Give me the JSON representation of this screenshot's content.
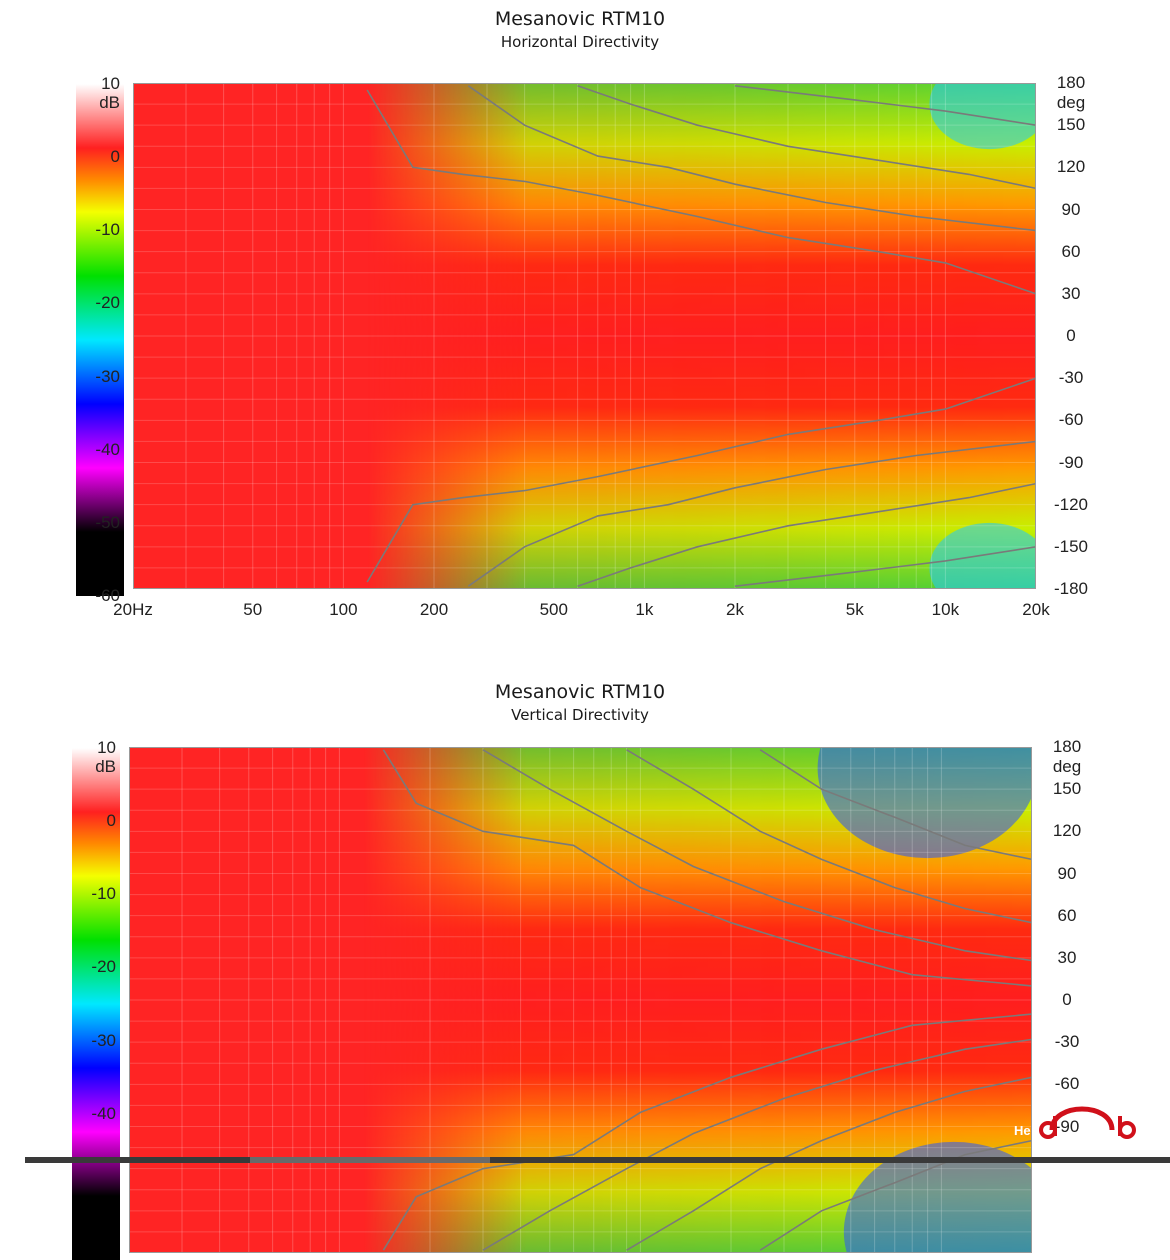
{
  "chart_data": [
    {
      "type": "heatmap",
      "title": "Mesanovic RTM10",
      "subtitle": "Horizontal Directivity",
      "xscale": "log",
      "xlim": [
        20,
        20000
      ],
      "ylim": [
        -180,
        180
      ],
      "x_ticks": [
        "20Hz",
        "50",
        "100",
        "200",
        "500",
        "1k",
        "2k",
        "5k",
        "10k",
        "20k"
      ],
      "x_tick_values": [
        20,
        50,
        100,
        200,
        500,
        1000,
        2000,
        5000,
        10000,
        20000
      ],
      "y_ticks": [
        "180",
        "150",
        "120",
        "90",
        "60",
        "30",
        "0",
        "-30",
        "-60",
        "-90",
        "-120",
        "-150",
        "-180"
      ],
      "y_tick_values": [
        180,
        150,
        120,
        90,
        60,
        30,
        0,
        -30,
        -60,
        -90,
        -120,
        -150,
        -180
      ],
      "y_unit": "deg",
      "colorbar": {
        "unit": "dB",
        "range": [
          -60,
          10
        ],
        "ticks": [
          "10",
          "0",
          "-10",
          "-20",
          "-30",
          "-40",
          "-50",
          "-60"
        ],
        "tick_values": [
          10,
          0,
          -10,
          -20,
          -30,
          -40,
          -50,
          -60
        ]
      },
      "contours": [
        {
          "level_db": -6,
          "points": [
            [
              120,
              175
            ],
            [
              170,
              120
            ],
            [
              250,
              115
            ],
            [
              400,
              110
            ],
            [
              700,
              100
            ],
            [
              1500,
              85
            ],
            [
              3000,
              70
            ],
            [
              6000,
              60
            ],
            [
              10000,
              52
            ],
            [
              20000,
              30
            ]
          ]
        },
        {
          "level_db": -10,
          "points": [
            [
              260,
              178
            ],
            [
              400,
              150
            ],
            [
              700,
              128
            ],
            [
              1200,
              120
            ],
            [
              2000,
              108
            ],
            [
              4000,
              95
            ],
            [
              8000,
              85
            ],
            [
              20000,
              75
            ]
          ]
        },
        {
          "level_db": -15,
          "points": [
            [
              600,
              178
            ],
            [
              900,
              165
            ],
            [
              1500,
              150
            ],
            [
              3000,
              135
            ],
            [
              6000,
              125
            ],
            [
              12000,
              115
            ],
            [
              20000,
              105
            ]
          ]
        },
        {
          "level_db": -20,
          "points": [
            [
              2000,
              178
            ],
            [
              5000,
              168
            ],
            [
              10000,
              160
            ],
            [
              20000,
              150
            ]
          ]
        }
      ]
    },
    {
      "type": "heatmap",
      "title": "Mesanovic RTM10",
      "subtitle": "Vertical Directivity",
      "xscale": "log",
      "xlim": [
        20,
        20000
      ],
      "ylim": [
        -180,
        180
      ],
      "y_ticks": [
        "180",
        "150",
        "120",
        "90",
        "60",
        "30",
        "0",
        "-30",
        "-60",
        "-90"
      ],
      "y_tick_values": [
        180,
        150,
        120,
        90,
        60,
        30,
        0,
        -30,
        -60,
        -90
      ],
      "y_unit": "deg",
      "colorbar": {
        "unit": "dB",
        "range": [
          -60,
          10
        ],
        "ticks": [
          "10",
          "0",
          "-10",
          "-20",
          "-30",
          "-40"
        ],
        "tick_values": [
          10,
          0,
          -10,
          -20,
          -30,
          -40
        ]
      },
      "contours": [
        {
          "level_db": -6,
          "points": [
            [
              140,
              178
            ],
            [
              180,
              140
            ],
            [
              300,
              120
            ],
            [
              600,
              110
            ],
            [
              1000,
              80
            ],
            [
              2000,
              55
            ],
            [
              4000,
              35
            ],
            [
              8000,
              18
            ],
            [
              20000,
              10
            ]
          ]
        },
        {
          "level_db": -10,
          "points": [
            [
              300,
              178
            ],
            [
              500,
              150
            ],
            [
              900,
              120
            ],
            [
              1500,
              95
            ],
            [
              3000,
              70
            ],
            [
              6000,
              50
            ],
            [
              12000,
              35
            ],
            [
              20000,
              28
            ]
          ]
        },
        {
          "level_db": -15,
          "points": [
            [
              900,
              178
            ],
            [
              1500,
              150
            ],
            [
              2500,
              120
            ],
            [
              4000,
              100
            ],
            [
              7000,
              80
            ],
            [
              12000,
              65
            ],
            [
              20000,
              55
            ]
          ]
        },
        {
          "level_db": -20,
          "points": [
            [
              2500,
              178
            ],
            [
              4000,
              150
            ],
            [
              7000,
              130
            ],
            [
              12000,
              110
            ],
            [
              20000,
              100
            ]
          ]
        }
      ]
    }
  ],
  "watermark": {
    "text": "He",
    "icon": "headphone-logo-icon"
  }
}
